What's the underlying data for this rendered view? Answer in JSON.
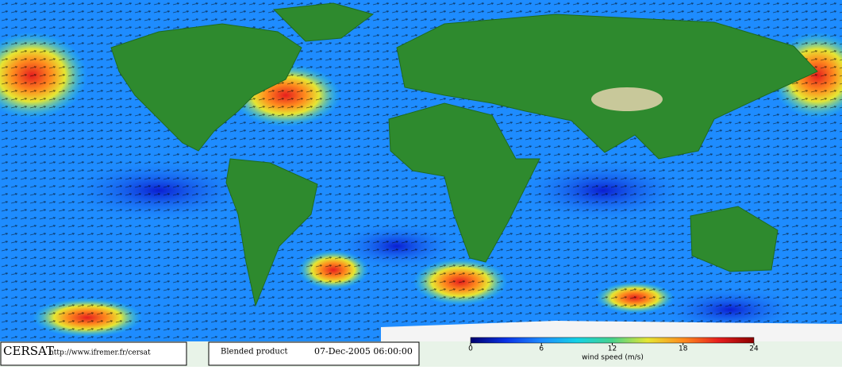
{
  "footer": {
    "logo": "CERSAT",
    "url": "http://www.ifremer.fr/cersat",
    "product": "Blended product",
    "date": "07-Dec-2005 06:00:00"
  },
  "colorbar": {
    "label": "wind speed (m/s)",
    "lim": [
      0,
      24
    ],
    "ticks": [
      0,
      6,
      12,
      18,
      24
    ],
    "colors": [
      "#00006e",
      "#0a32e6",
      "#1e8cff",
      "#14d2e6",
      "#46d28c",
      "#e6e632",
      "#ff8c1e",
      "#e61e1e",
      "#8c0000"
    ]
  }
}
